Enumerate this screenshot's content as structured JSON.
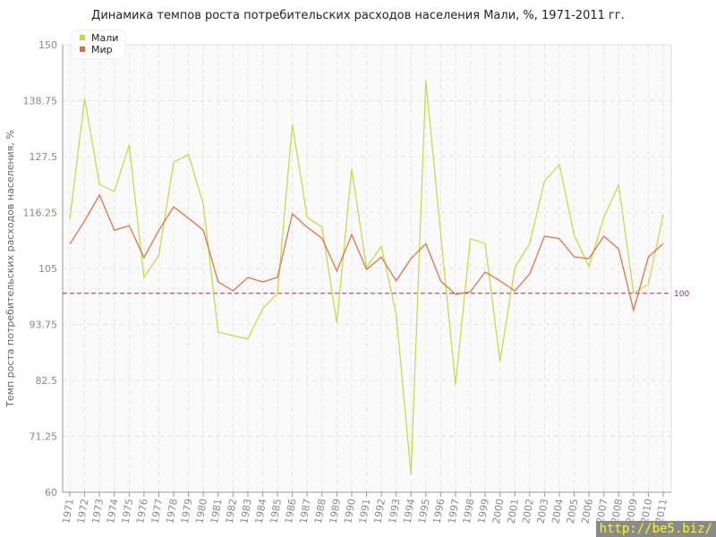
{
  "chart_data": {
    "type": "line",
    "title": "Динамика темпов роста потребительских расходов населения Мали, %, 1971-2011 гг.",
    "xlabel": "",
    "ylabel": "Темп роста потребительских расходов населения, %",
    "ylim": [
      60,
      150
    ],
    "yticks": [
      "60",
      "71.25",
      "82.5",
      "93.75",
      "105",
      "116.25",
      "127.5",
      "138.75",
      "150"
    ],
    "x": [
      1971,
      1972,
      1973,
      1974,
      1975,
      1976,
      1977,
      1978,
      1979,
      1980,
      1981,
      1982,
      1983,
      1984,
      1985,
      1986,
      1987,
      1988,
      1989,
      1990,
      1991,
      1992,
      1993,
      1994,
      1995,
      1996,
      1997,
      1998,
      1999,
      2000,
      2001,
      2002,
      2003,
      2004,
      2005,
      2006,
      2007,
      2008,
      2009,
      2010,
      2011
    ],
    "series": [
      {
        "name": "Мали",
        "color": "#c0dc3c",
        "values": [
          114.9,
          139.2,
          121.9,
          120.5,
          129.8,
          103.2,
          107.7,
          126.4,
          127.9,
          118,
          92.2,
          91.5,
          90.8,
          96.9,
          100,
          134,
          115.3,
          113.3,
          94,
          125,
          105.2,
          109.5,
          95.8,
          63.6,
          142.8,
          112,
          81.6,
          111,
          110,
          86.3,
          105.2,
          110,
          122.6,
          125.9,
          111.7,
          105.4,
          115.3,
          121.8,
          100.1,
          101.8,
          115.8
        ]
      },
      {
        "name": "Мир",
        "color": "#e8693a",
        "values": [
          109.9,
          114.6,
          119.8,
          112.7,
          113.6,
          107.2,
          112.7,
          117.4,
          115.1,
          112.7,
          102.3,
          100.5,
          103.2,
          102.3,
          103.2,
          116,
          113.3,
          111.1,
          104.5,
          111.8,
          104.8,
          107.3,
          102.5,
          107,
          110,
          102.5,
          99.8,
          100.3,
          104.3,
          102.5,
          100.5,
          103.9,
          111.5,
          111,
          107.3,
          107,
          111.5,
          108.9,
          96.6,
          107.3,
          110
        ]
      }
    ],
    "reference_line": {
      "value": 100,
      "label": "100",
      "color": "#a03050"
    },
    "legend": "top-left",
    "grid": true
  },
  "watermark": "http://be5.biz/"
}
